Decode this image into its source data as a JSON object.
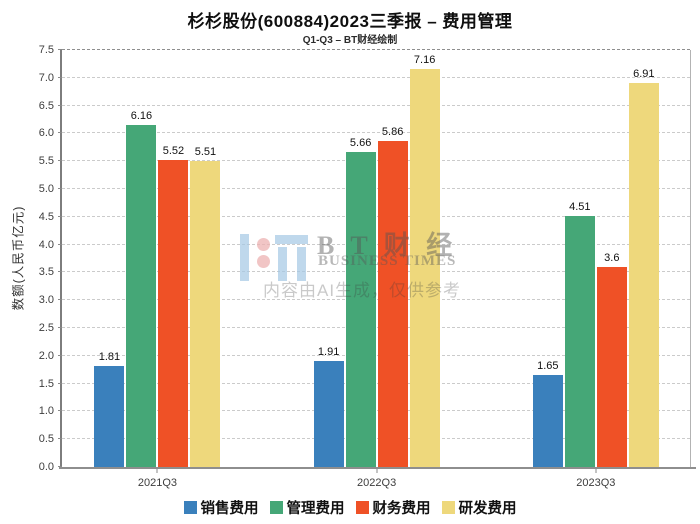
{
  "header": {
    "title": "杉杉股份(600884)2023三季报 – 费用管理",
    "subtitle": "Q1-Q3 – BT财经绘制"
  },
  "watermark": {
    "brand_cn": "B T 财 经",
    "brand_en": "BUSINESS TIMES",
    "disclaimer": "内容由AI生成，仅供参考"
  },
  "chart_data": {
    "type": "bar",
    "title": "杉杉股份(600884)2023三季报 – 费用管理",
    "subtitle": "Q1-Q3 – BT财经绘制",
    "categories": [
      "2021Q3",
      "2022Q3",
      "2023Q3"
    ],
    "series": [
      {
        "name": "销售费用",
        "color": "#3a80bc",
        "values": [
          1.81,
          1.91,
          1.65
        ]
      },
      {
        "name": "管理费用",
        "color": "#45a777",
        "values": [
          6.16,
          5.66,
          4.51
        ]
      },
      {
        "name": "财务费用",
        "color": "#ef5126",
        "values": [
          5.52,
          5.86,
          3.6
        ]
      },
      {
        "name": "研发费用",
        "color": "#eed87c",
        "values": [
          5.51,
          7.16,
          6.91
        ]
      }
    ],
    "xlabel": "",
    "ylabel": "数额(人民币亿元)",
    "ylim": [
      0,
      7.5
    ],
    "ytick_step": 0.5,
    "grid": "horizontal-dashed",
    "legend_position": "bottom"
  }
}
